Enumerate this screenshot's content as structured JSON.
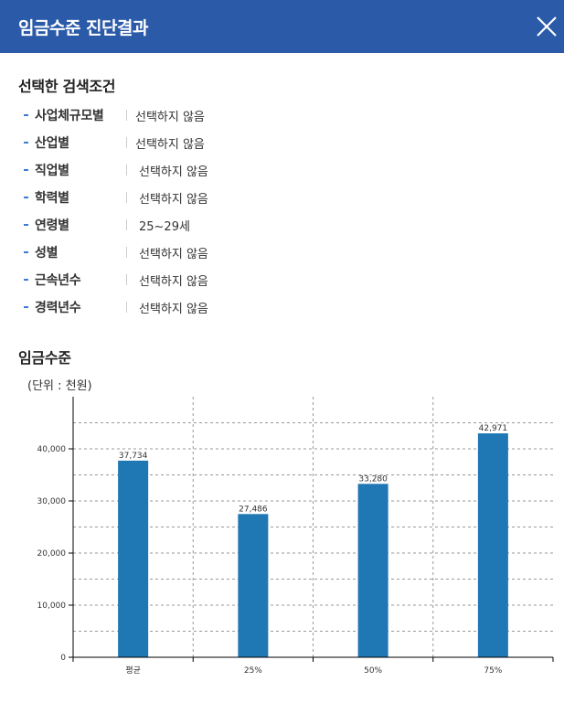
{
  "header": {
    "title": "임금수준 진단결과"
  },
  "criteria": {
    "title": "선택한 검색조건",
    "items": [
      {
        "label": "사업체규모별",
        "value": "선택하지 않음"
      },
      {
        "label": "산업별",
        "value": "선택하지 않음"
      },
      {
        "label": "직업별",
        "value": "선택하지 않음"
      },
      {
        "label": "학력별",
        "value": "선택하지 않음"
      },
      {
        "label": "연령별",
        "value": "25~29세"
      },
      {
        "label": "성별",
        "value": "선택하지 않음"
      },
      {
        "label": "근속년수",
        "value": "선택하지 않음"
      },
      {
        "label": "경력년수",
        "value": "선택하지 않음"
      }
    ]
  },
  "wage": {
    "title": "임금수준",
    "unit": "(단위 : 천원)"
  },
  "chart_data": {
    "type": "bar",
    "categories": [
      "평균",
      "25%",
      "50%",
      "75%"
    ],
    "values": [
      37734,
      27486,
      33280,
      42971
    ],
    "value_labels": [
      "37,734",
      "27,486",
      "33,280",
      "42,971"
    ],
    "yticks": [
      0,
      10000,
      20000,
      30000,
      40000
    ],
    "ytick_labels": [
      "0",
      "10,000",
      "20,000",
      "30,000",
      "40,000"
    ],
    "ylim": [
      0,
      50000
    ],
    "grid": true,
    "bar_color": "#1f77b4"
  }
}
